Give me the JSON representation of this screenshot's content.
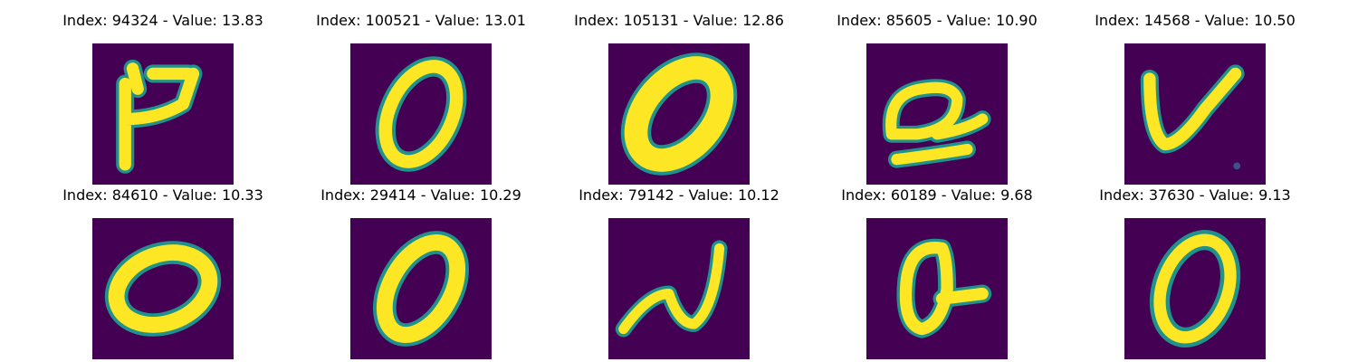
{
  "colors": {
    "background": "#440154",
    "stroke": "#fde725",
    "edge": "#21918c"
  },
  "panels": [
    {
      "title": "Index: 94324 - Value: 13.83",
      "glyph": "hook-digit"
    },
    {
      "title": "Index: 100521 - Value: 13.01",
      "glyph": "zero"
    },
    {
      "title": "Index: 105131 - Value: 12.86",
      "glyph": "zero-thick"
    },
    {
      "title": "Index: 85605 - Value: 10.90",
      "glyph": "loop-digit"
    },
    {
      "title": "Index: 14568 - Value: 10.50",
      "glyph": "v-shape"
    },
    {
      "title": "Index: 84610 - Value: 10.33",
      "glyph": "zero"
    },
    {
      "title": "Index: 29414 - Value: 10.29",
      "glyph": "zero"
    },
    {
      "title": "Index: 79142 - Value: 10.12",
      "glyph": "n-shape"
    },
    {
      "title": "Index: 60189 - Value: 9.68",
      "glyph": "a-shape"
    },
    {
      "title": "Index: 37630 - Value: 9.13",
      "glyph": "zero"
    }
  ]
}
